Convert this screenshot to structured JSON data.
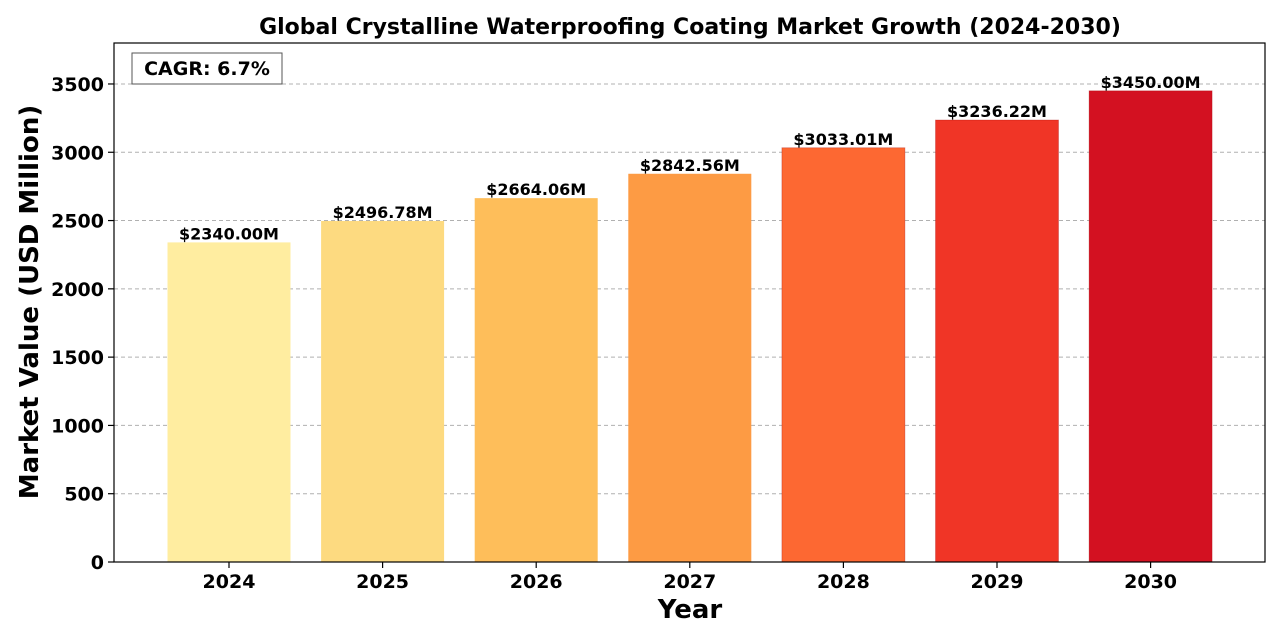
{
  "chart_data": {
    "type": "bar",
    "title": "Global Crystalline Waterproofing Coating Market Growth (2024-2030)",
    "xlabel": "Year",
    "ylabel": "Market Value (USD Million)",
    "categories": [
      "2024",
      "2025",
      "2026",
      "2027",
      "2028",
      "2029",
      "2030"
    ],
    "values": [
      2340.0,
      2496.78,
      2664.06,
      2842.56,
      3033.01,
      3236.22,
      3450.0
    ],
    "value_labels": [
      "$2340.00M",
      "$2496.78M",
      "$2664.06M",
      "$2842.56M",
      "$3033.01M",
      "$3236.22M",
      "$3450.00M"
    ],
    "colors": [
      "#ffeda0",
      "#fdda80",
      "#febe5a",
      "#fd9b44",
      "#fd6832",
      "#f03526",
      "#d31121"
    ],
    "ylim": [
      0,
      3800
    ],
    "yticks": [
      0,
      500,
      1000,
      1500,
      2000,
      2500,
      3000,
      3500
    ],
    "grid": "y-dashed",
    "annotation": "CAGR: 6.7%"
  }
}
